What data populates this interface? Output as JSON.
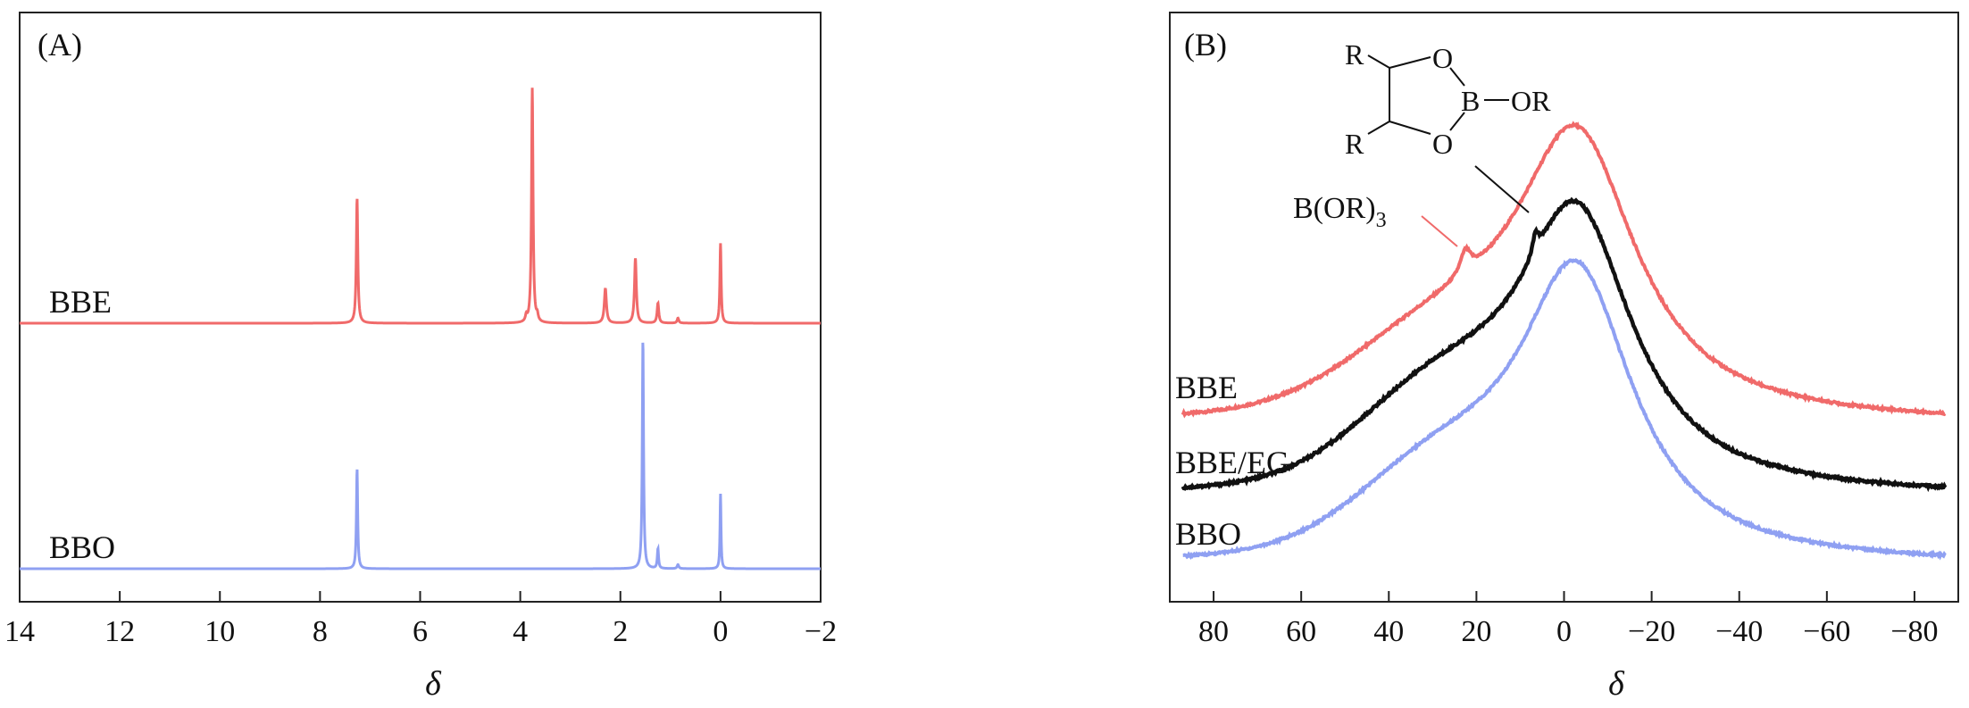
{
  "colors": {
    "BBE": "#f06a6a",
    "BBO": "#8fa0f2",
    "BBE/EG": "#111111",
    "axis": "#222222"
  },
  "chart_data": [
    {
      "type": "line",
      "panel_label": "(A)",
      "xlabel": "δ",
      "ylabel": "",
      "xlim": [
        14,
        -2
      ],
      "x_reversed": true,
      "x_ticks": [
        {
          "value": 14,
          "label": "14"
        },
        {
          "value": 12,
          "label": "12"
        },
        {
          "value": 10,
          "label": "10"
        },
        {
          "value": 8,
          "label": "8"
        },
        {
          "value": 6,
          "label": "6"
        },
        {
          "value": 4,
          "label": "4"
        },
        {
          "value": 2,
          "label": "2"
        },
        {
          "value": 0,
          "label": "0"
        },
        {
          "value": -2,
          "label": "−2"
        }
      ],
      "y_tick_labels": "none",
      "series": [
        {
          "name": "BBE",
          "color": "#f06a6a",
          "baseline": 0.0,
          "offset": 0.49,
          "peaks": [
            {
              "x": 7.26,
              "height": 0.25,
              "width": 0.018
            },
            {
              "x": 3.76,
              "height": 0.47,
              "width": 0.018
            },
            {
              "x": 3.66,
              "height": 0.012,
              "width": 0.02
            },
            {
              "x": 3.88,
              "height": 0.012,
              "width": 0.02
            },
            {
              "x": 2.3,
              "height": 0.07,
              "width": 0.025
            },
            {
              "x": 1.7,
              "height": 0.13,
              "width": 0.022
            },
            {
              "x": 1.25,
              "height": 0.04,
              "width": 0.02
            },
            {
              "x": 0.85,
              "height": 0.01,
              "width": 0.02
            },
            {
              "x": 0.0,
              "height": 0.16,
              "width": 0.015
            }
          ]
        },
        {
          "name": "BBO",
          "color": "#8fa0f2",
          "baseline": 0.0,
          "offset": 0.0,
          "peaks": [
            {
              "x": 7.26,
              "height": 0.2,
              "width": 0.015
            },
            {
              "x": 1.55,
              "height": 0.46,
              "width": 0.015
            },
            {
              "x": 1.25,
              "height": 0.04,
              "width": 0.015
            },
            {
              "x": 0.85,
              "height": 0.008,
              "width": 0.02
            },
            {
              "x": 0.0,
              "height": 0.15,
              "width": 0.012
            }
          ]
        }
      ]
    },
    {
      "type": "line",
      "panel_label": "(B)",
      "xlabel": "δ",
      "ylabel": "",
      "xlim": [
        90,
        -90
      ],
      "x_reversed": true,
      "x_ticks": [
        {
          "value": 80,
          "label": "80"
        },
        {
          "value": 60,
          "label": "60"
        },
        {
          "value": 40,
          "label": "40"
        },
        {
          "value": 20,
          "label": "20"
        },
        {
          "value": 0,
          "label": "0"
        },
        {
          "value": -20,
          "label": "−20"
        },
        {
          "value": -40,
          "label": "−40"
        },
        {
          "value": -60,
          "label": "−60"
        },
        {
          "value": -80,
          "label": "−80"
        }
      ],
      "y_tick_labels": "none",
      "series": [
        {
          "name": "BBE",
          "color": "#f06a6a",
          "offset": 0.275,
          "main_peak": {
            "x": -3,
            "height": 0.72,
            "width": 17
          },
          "shoulder": {
            "x": 28,
            "height": 0.18,
            "width": 28
          },
          "sharp_peaks": [
            {
              "x": 22.5,
              "height": 0.06,
              "width": 1.5
            }
          ]
        },
        {
          "name": "BBE/EG",
          "color": "#111111",
          "offset": 0.125,
          "main_peak": {
            "x": -3,
            "height": 0.71,
            "width": 16
          },
          "shoulder": {
            "x": 28,
            "height": 0.22,
            "width": 26
          },
          "sharp_peaks": [
            {
              "x": 6.5,
              "height": 0.05,
              "width": 0.9
            }
          ]
        },
        {
          "name": "BBO",
          "color": "#8fa0f2",
          "offset": 0.0,
          "main_peak": {
            "x": -3,
            "height": 0.74,
            "width": 16
          },
          "shoulder": {
            "x": 28,
            "height": 0.2,
            "width": 26
          },
          "sharp_peaks": []
        }
      ],
      "annotations": [
        {
          "text": "B(OR)",
          "subscript": "3",
          "points_to_series": "BBE",
          "points_to_x": 22.5
        },
        {
          "structure": "R-substituted dioxaborolane",
          "labels": [
            "R",
            "O",
            "B",
            "OR",
            "R",
            "O"
          ],
          "points_to_series": "BBE/EG",
          "points_to_x": 6.5
        }
      ]
    }
  ]
}
